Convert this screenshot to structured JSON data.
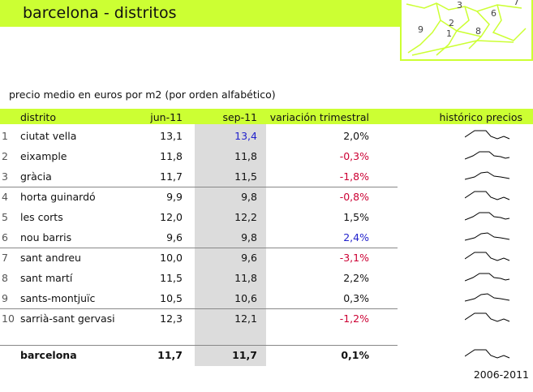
{
  "header": {
    "title": "barcelona - distritos"
  },
  "map": {
    "labels": [
      "3",
      "6",
      "7",
      "9",
      "2",
      "1",
      "8"
    ]
  },
  "subtitle": "precio medio en euros por m2 (por orden alfabético)",
  "table": {
    "columns": [
      "distrito",
      "jun-11",
      "sep-11",
      "variación trimestral",
      "histórico precios"
    ],
    "rows": [
      [
        "1",
        "ciutat vella",
        "13,1",
        "13,4",
        "2,0%"
      ],
      [
        "2",
        "eixample",
        "11,8",
        "11,8",
        "-0,3%"
      ],
      [
        "3",
        "gràcia",
        "11,7",
        "11,5",
        "-1,8%"
      ],
      [
        "4",
        "horta guinardó",
        "9,9",
        "9,8",
        "-0,8%"
      ],
      [
        "5",
        "les corts",
        "12,0",
        "12,2",
        "1,5%"
      ],
      [
        "6",
        "nou barris",
        "9,6",
        "9,8",
        "2,4%"
      ],
      [
        "7",
        "sant andreu",
        "10,0",
        "9,6",
        "-3,1%"
      ],
      [
        "8",
        "sant martí",
        "11,5",
        "11,8",
        "2,2%"
      ],
      [
        "9",
        "sants-montjuïc",
        "10,5",
        "10,6",
        "0,3%"
      ],
      [
        "10",
        "sarrià-sant gervasi",
        "12,3",
        "12,1",
        "-1,2%"
      ]
    ],
    "total": [
      "barcelona",
      "11,7",
      "11,7",
      "0,1%"
    ]
  },
  "footer": "2006-2011"
}
